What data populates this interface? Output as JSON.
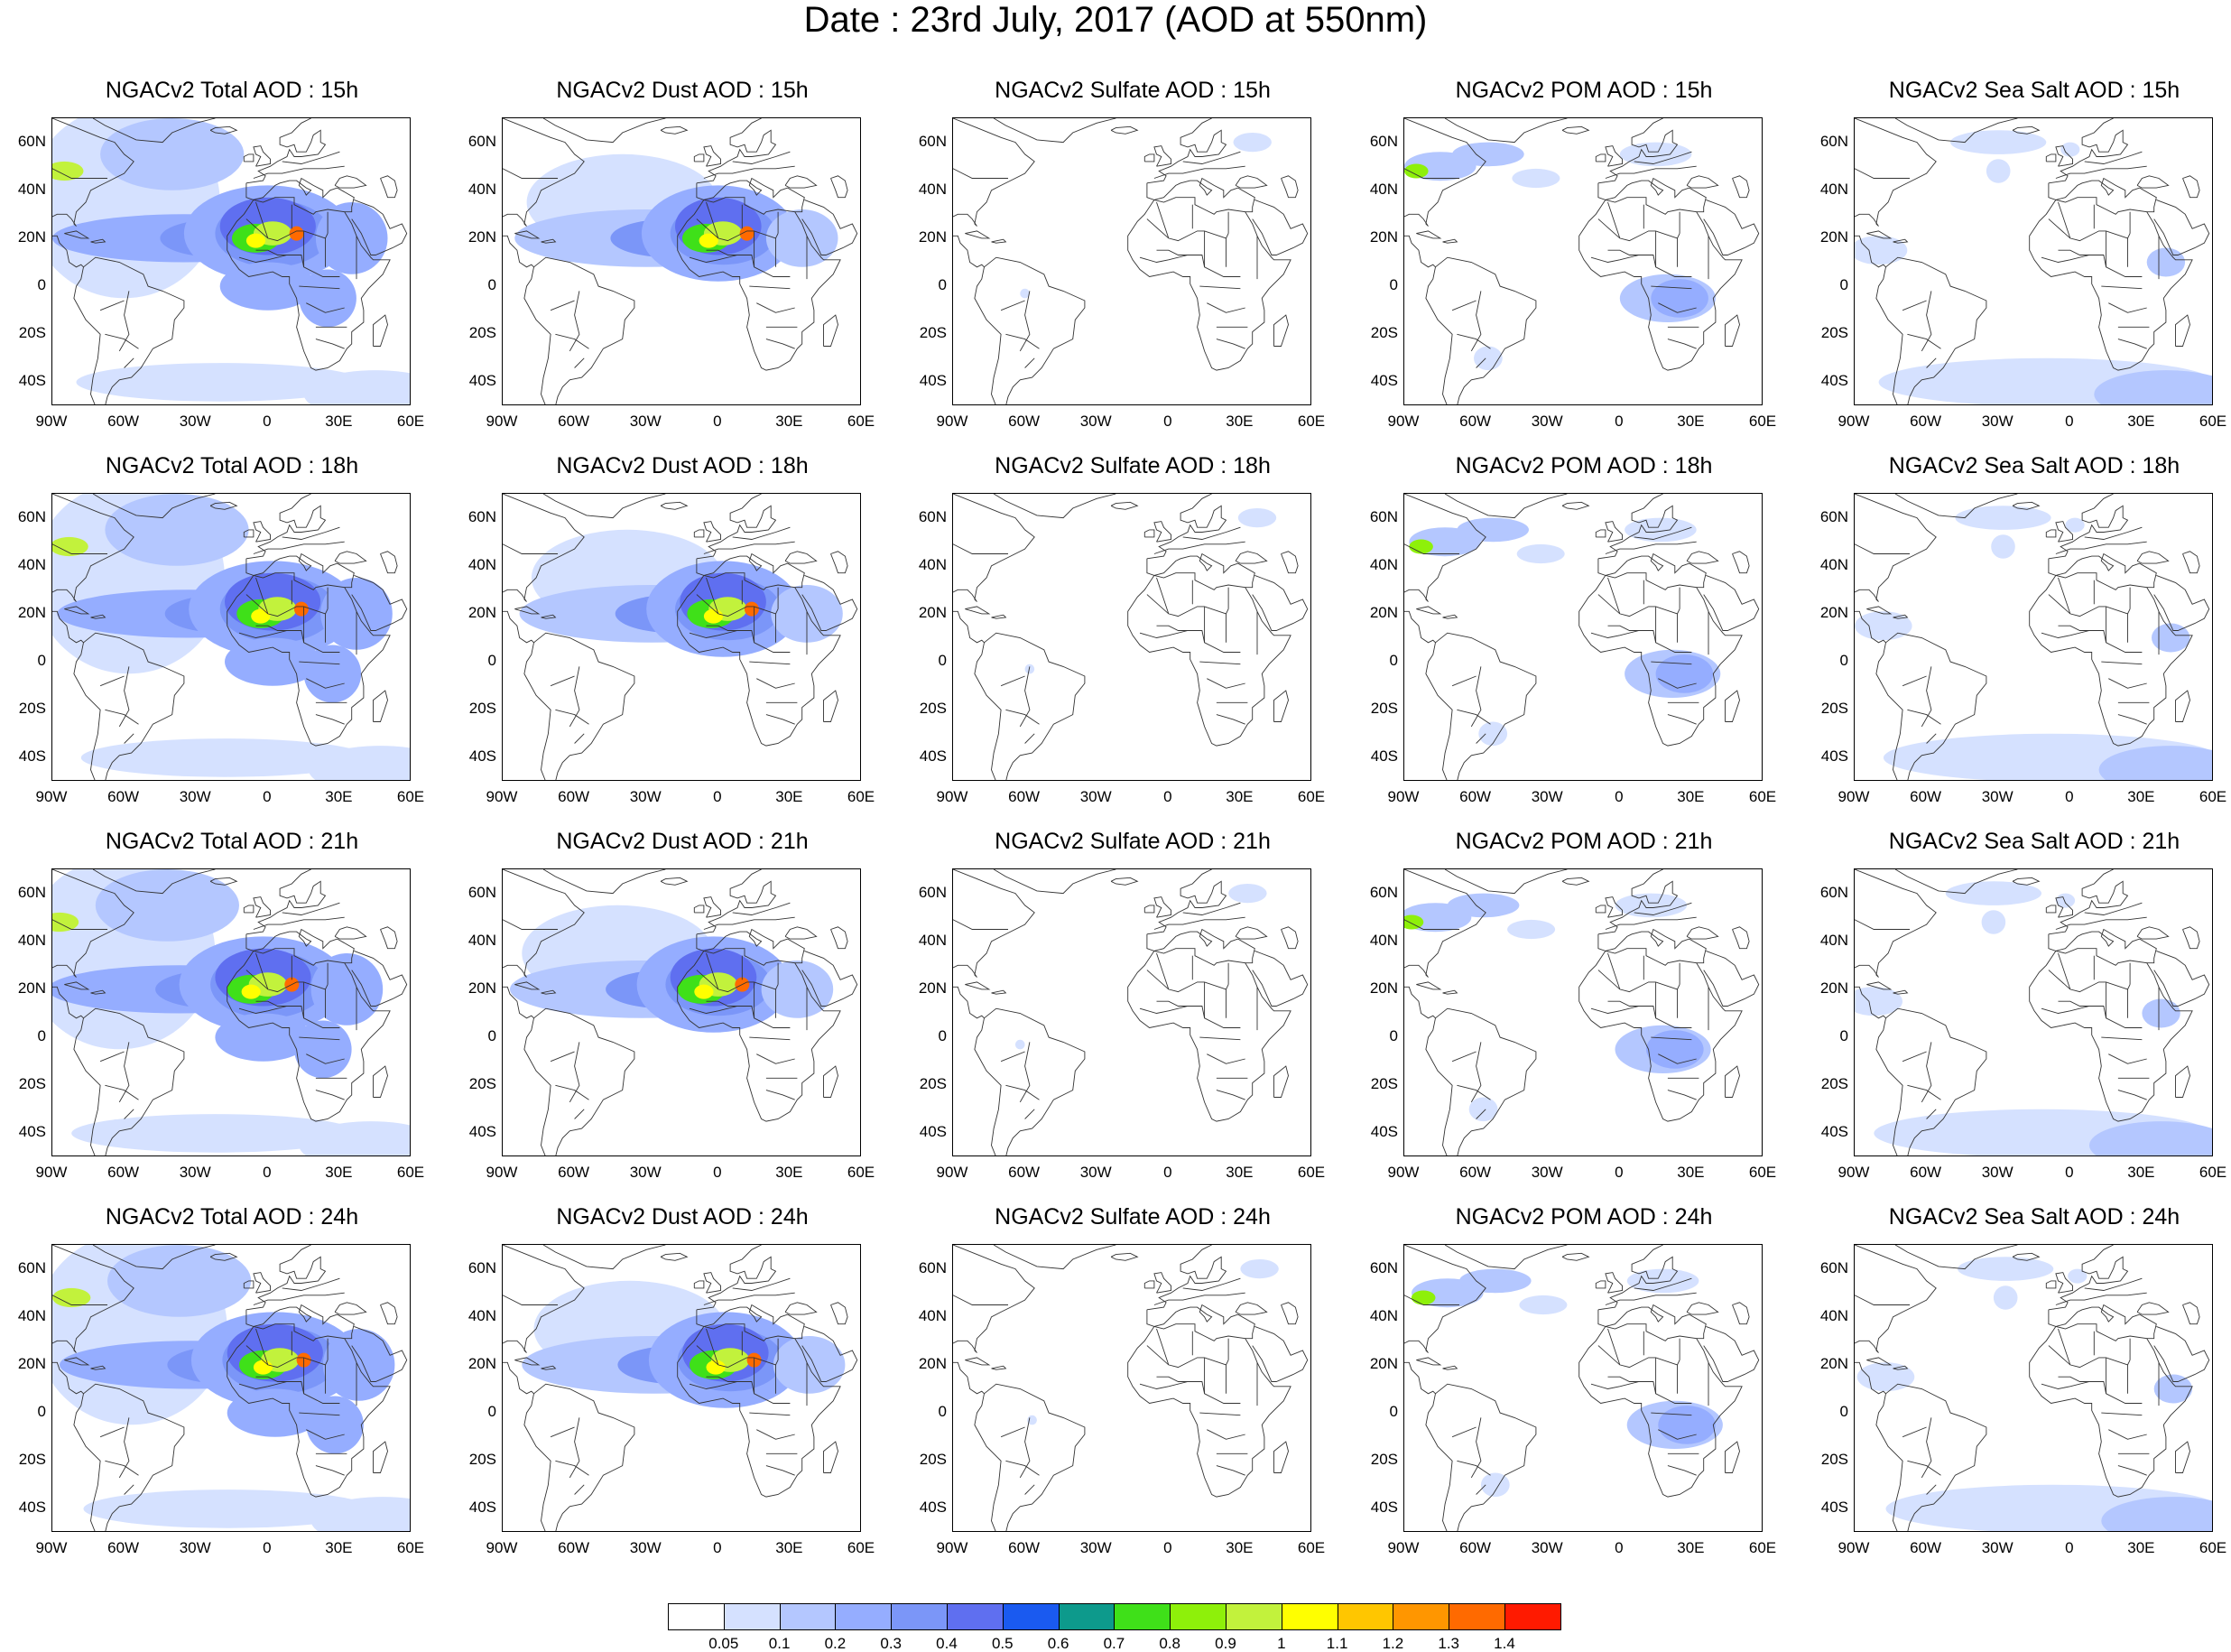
{
  "title": "Date : 23rd July, 2017 (AOD at 550nm)",
  "columns": [
    {
      "key": "total",
      "label": "Total"
    },
    {
      "key": "dust",
      "label": "Dust"
    },
    {
      "key": "sulfate",
      "label": "Sulfate"
    },
    {
      "key": "pom",
      "label": "POM"
    },
    {
      "key": "seasalt",
      "label": "Sea Salt"
    }
  ],
  "panels": [
    [
      "NGACv2 Total AOD : 15h",
      "NGACv2 Dust AOD : 15h",
      "NGACv2 Sulfate AOD : 15h",
      "NGACv2 POM AOD : 15h",
      "NGACv2 Sea Salt AOD : 15h"
    ],
    [
      "NGACv2 Total AOD : 18h",
      "NGACv2 Dust AOD : 18h",
      "NGACv2 Sulfate AOD : 18h",
      "NGACv2 POM AOD : 18h",
      "NGACv2 Sea Salt AOD : 18h"
    ],
    [
      "NGACv2 Total AOD : 21h",
      "NGACv2 Dust AOD : 21h",
      "NGACv2 Sulfate AOD : 21h",
      "NGACv2 POM AOD : 21h",
      "NGACv2 Sea Salt AOD : 21h"
    ],
    [
      "NGACv2 Total AOD : 24h",
      "NGACv2 Dust AOD : 24h",
      "NGACv2 Sulfate AOD : 24h",
      "NGACv2 POM AOD : 24h",
      "NGACv2 Sea Salt  AOD : 24h"
    ]
  ],
  "hours": [
    "15h",
    "18h",
    "21h",
    "24h"
  ],
  "lat_ticks": [
    "60N",
    "40N",
    "20N",
    "0",
    "20S",
    "40S"
  ],
  "lat_values": [
    60,
    40,
    20,
    0,
    -20,
    -40
  ],
  "lon_ticks": [
    "90W",
    "60W",
    "30W",
    "0",
    "30E",
    "60E"
  ],
  "lon_values": [
    -90,
    -60,
    -30,
    0,
    30,
    60
  ],
  "map_extent": {
    "lon": [
      -90,
      60
    ],
    "lat": [
      -50,
      70
    ]
  },
  "colorbar": {
    "labels": [
      "0.05",
      "0.1",
      "0.2",
      "0.3",
      "0.4",
      "0.5",
      "0.6",
      "0.7",
      "0.8",
      "0.9",
      "1",
      "1.1",
      "1.2",
      "1.3",
      "1.4"
    ],
    "colors": [
      "#ffffff",
      "#d5e1ff",
      "#b4c7ff",
      "#95adff",
      "#7b96f8",
      "#5f6ff0",
      "#1a5af0",
      "#0d9a8c",
      "#3fe019",
      "#8ef00a",
      "#c2f23c",
      "#ffff00",
      "#ffc600",
      "#ff9600",
      "#ff6a00",
      "#ff1a00"
    ]
  }
}
